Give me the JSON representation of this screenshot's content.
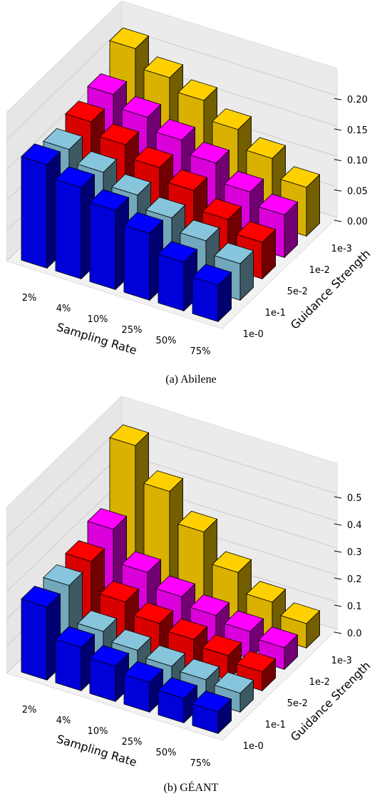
{
  "chart_data": [
    {
      "type": "bar3d",
      "caption": "(a)  Abilene",
      "xlabel": "Sampling Rate",
      "ylabel": "Guidance Strength",
      "categories": [
        "2%",
        "4%",
        "10%",
        "25%",
        "50%",
        "75%"
      ],
      "series": [
        {
          "name": "1e-0",
          "color": "#0000ff",
          "values": [
            0.17,
            0.15,
            0.13,
            0.11,
            0.08,
            0.06
          ]
        },
        {
          "name": "1e-1",
          "color": "#87c5dc",
          "values": [
            0.16,
            0.14,
            0.12,
            0.1,
            0.08,
            0.06
          ]
        },
        {
          "name": "5e-2",
          "color": "#ff0000",
          "values": [
            0.17,
            0.15,
            0.13,
            0.11,
            0.08,
            0.06
          ]
        },
        {
          "name": "1e-2",
          "color": "#ff00ff",
          "values": [
            0.18,
            0.16,
            0.14,
            0.12,
            0.09,
            0.07
          ]
        },
        {
          "name": "1e-3",
          "color": "#ffd000",
          "values": [
            0.22,
            0.19,
            0.17,
            0.14,
            0.11,
            0.08
          ]
        }
      ],
      "zlim": [
        0,
        0.24
      ],
      "zticks": [
        {
          "value": 0,
          "label": "0.00"
        },
        0.05,
        {
          "value": 0.1,
          "label": "0.10"
        },
        0.15,
        {
          "value": 0.2,
          "label": "0.20"
        }
      ]
    },
    {
      "type": "bar3d",
      "caption": "(b)  GÉANT",
      "xlabel": "Sampling Rate",
      "ylabel": "Guidance Strength",
      "categories": [
        "2%",
        "4%",
        "10%",
        "25%",
        "50%",
        "75%"
      ],
      "series": [
        {
          "name": "1e-0",
          "color": "#0000ff",
          "values": [
            0.27,
            0.16,
            0.13,
            0.11,
            0.09,
            0.08
          ]
        },
        {
          "name": "1e-1",
          "color": "#87c5dc",
          "values": [
            0.27,
            0.14,
            0.11,
            0.09,
            0.08,
            0.07
          ]
        },
        {
          "name": "5e-2",
          "color": "#ff0000",
          "values": [
            0.28,
            0.17,
            0.13,
            0.11,
            0.09,
            0.07
          ]
        },
        {
          "name": "1e-2",
          "color": "#ff00ff",
          "values": [
            0.32,
            0.2,
            0.15,
            0.12,
            0.1,
            0.08
          ]
        },
        {
          "name": "1e-3",
          "color": "#ffd000",
          "values": [
            0.55,
            0.42,
            0.31,
            0.2,
            0.13,
            0.09
          ]
        }
      ],
      "zlim": [
        0,
        0.6
      ],
      "zticks": [
        {
          "value": 0,
          "label": "0.0"
        },
        0.1,
        0.2,
        0.3,
        0.4,
        0.5
      ]
    }
  ]
}
